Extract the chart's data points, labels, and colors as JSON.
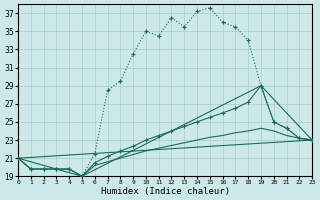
{
  "xlabel": "Humidex (Indice chaleur)",
  "bg_color": "#cde8e8",
  "grid_color": "#aacccc",
  "line_color": "#1a6b5a",
  "xlim": [
    0,
    23
  ],
  "ylim": [
    19,
    38
  ],
  "yticks": [
    19,
    21,
    23,
    25,
    27,
    29,
    31,
    33,
    35,
    37
  ],
  "xticks": [
    0,
    1,
    2,
    3,
    4,
    5,
    6,
    7,
    8,
    9,
    10,
    11,
    12,
    13,
    14,
    15,
    16,
    17,
    18,
    19,
    20,
    21,
    22,
    23
  ],
  "curve1_x": [
    0,
    1,
    2,
    3,
    4,
    5,
    6,
    7,
    8,
    9,
    10,
    11,
    12,
    13,
    14,
    15,
    16,
    17,
    18,
    19,
    20,
    21,
    22,
    23
  ],
  "curve1_y": [
    21.0,
    19.8,
    19.8,
    19.8,
    19.8,
    19.0,
    21.5,
    28.5,
    29.5,
    32.5,
    35.0,
    34.5,
    36.5,
    35.5,
    37.2,
    37.6,
    36.0,
    35.5,
    34.0,
    29.0,
    25.0,
    24.3,
    23.2,
    23.0
  ],
  "curve2_x": [
    0,
    1,
    2,
    3,
    4,
    5,
    6,
    7,
    8,
    9,
    10,
    11,
    12,
    13,
    14,
    15,
    16,
    17,
    18,
    19,
    20,
    21,
    22,
    23
  ],
  "curve2_y": [
    21.0,
    19.8,
    19.8,
    19.8,
    19.8,
    19.0,
    20.5,
    21.2,
    21.8,
    22.3,
    23.0,
    23.5,
    24.0,
    24.5,
    25.0,
    25.5,
    26.0,
    26.5,
    27.2,
    29.0,
    25.0,
    24.3,
    23.2,
    23.0
  ],
  "curve3_x": [
    0,
    1,
    2,
    3,
    4,
    5,
    6,
    7,
    8,
    9,
    10,
    11,
    12,
    13,
    14,
    15,
    16,
    17,
    18,
    19,
    20,
    21,
    22,
    23
  ],
  "curve3_y": [
    21.0,
    19.8,
    19.8,
    19.8,
    19.8,
    19.0,
    20.2,
    20.6,
    21.0,
    21.4,
    21.8,
    22.1,
    22.4,
    22.7,
    23.0,
    23.3,
    23.5,
    23.8,
    24.0,
    24.3,
    24.0,
    23.5,
    23.2,
    23.0
  ],
  "line4_x": [
    0,
    5,
    19,
    23,
    0
  ],
  "line4_y": [
    21.0,
    19.0,
    29.0,
    23.0,
    21.0
  ]
}
